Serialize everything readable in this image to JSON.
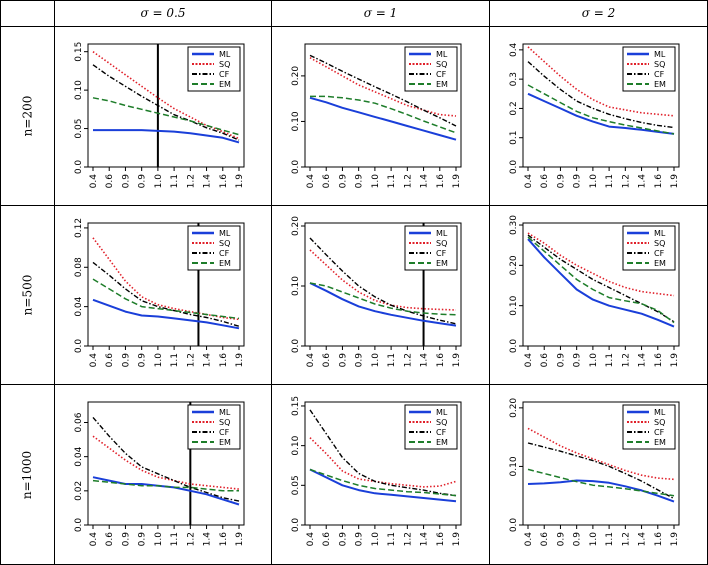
{
  "table": {
    "col_headers": [
      "σ = 0.5",
      "σ = 1",
      "σ = 2"
    ],
    "row_headers": [
      "n=200",
      "n=500",
      "n=1000"
    ]
  },
  "series_colors": {
    "ML": "#1a3fd9",
    "SQ": "#e0202a",
    "CF": "#000000",
    "EM": "#1e7d2a"
  },
  "chart_data": [
    {
      "type": "line",
      "row": "n=200",
      "col": "σ = 0.5",
      "x": [
        0.4,
        0.6,
        0.9,
        0.9,
        1.0,
        1.1,
        1.2,
        1.4,
        1.6,
        1.9
      ],
      "x_ticks": [
        "0.4",
        "0.6",
        "0.9",
        "0.9",
        "1.0",
        "1.1",
        "1.2",
        "1.4",
        "1.6",
        "1.9"
      ],
      "ylim": [
        0,
        0.16
      ],
      "y_ticks": [
        "0.0",
        "0.05",
        "0.10",
        "0.15"
      ],
      "y_tick_values": [
        0,
        0.05,
        0.1,
        0.15
      ],
      "vline_x": 1.0,
      "legend": [
        "ML",
        "SQ",
        "CF",
        "EM"
      ],
      "series": [
        {
          "name": "ML",
          "values": [
            0.048,
            0.048,
            0.048,
            0.048,
            0.047,
            0.046,
            0.044,
            0.041,
            0.038,
            0.032
          ]
        },
        {
          "name": "SQ",
          "values": [
            0.15,
            0.135,
            0.12,
            0.105,
            0.09,
            0.076,
            0.065,
            0.054,
            0.046,
            0.037
          ]
        },
        {
          "name": "CF",
          "values": [
            0.133,
            0.118,
            0.105,
            0.092,
            0.08,
            0.068,
            0.06,
            0.051,
            0.044,
            0.035
          ]
        },
        {
          "name": "EM",
          "values": [
            0.09,
            0.086,
            0.08,
            0.075,
            0.07,
            0.065,
            0.06,
            0.054,
            0.048,
            0.042
          ]
        }
      ]
    },
    {
      "type": "line",
      "row": "n=200",
      "col": "σ = 1",
      "x": [
        0.4,
        0.6,
        0.9,
        0.9,
        1.0,
        1.1,
        1.2,
        1.4,
        1.6,
        1.9
      ],
      "x_ticks": [
        "0.4",
        "0.6",
        "0.9",
        "0.9",
        "1.0",
        "1.1",
        "1.2",
        "1.4",
        "1.6",
        "1.9"
      ],
      "ylim": [
        0,
        0.27
      ],
      "y_ticks": [
        "0.0",
        "0.10",
        "0.20"
      ],
      "y_tick_values": [
        0,
        0.1,
        0.2
      ],
      "vline_x": null,
      "legend": [
        "ML",
        "SQ",
        "CF",
        "EM"
      ],
      "series": [
        {
          "name": "ML",
          "values": [
            0.152,
            0.142,
            0.13,
            0.12,
            0.11,
            0.1,
            0.09,
            0.08,
            0.07,
            0.06
          ]
        },
        {
          "name": "SQ",
          "values": [
            0.24,
            0.22,
            0.2,
            0.18,
            0.165,
            0.15,
            0.135,
            0.125,
            0.115,
            0.112
          ]
        },
        {
          "name": "CF",
          "values": [
            0.245,
            0.228,
            0.21,
            0.193,
            0.176,
            0.16,
            0.143,
            0.125,
            0.108,
            0.09
          ]
        },
        {
          "name": "EM",
          "values": [
            0.155,
            0.155,
            0.152,
            0.147,
            0.14,
            0.128,
            0.115,
            0.101,
            0.088,
            0.075
          ]
        }
      ]
    },
    {
      "type": "line",
      "row": "n=200",
      "col": "σ = 2",
      "x": [
        0.4,
        0.6,
        0.9,
        0.9,
        1.0,
        1.1,
        1.2,
        1.4,
        1.6,
        1.9
      ],
      "x_ticks": [
        "0.4",
        "0.6",
        "0.9",
        "0.9",
        "1.0",
        "1.1",
        "1.2",
        "1.4",
        "1.6",
        "1.9"
      ],
      "ylim": [
        0,
        0.42
      ],
      "y_ticks": [
        "0.0",
        "0.1",
        "0.2",
        "0.3",
        "0.4"
      ],
      "y_tick_values": [
        0,
        0.1,
        0.2,
        0.3,
        0.4
      ],
      "vline_x": null,
      "legend": [
        "ML",
        "SQ",
        "CF",
        "EM"
      ],
      "series": [
        {
          "name": "ML",
          "values": [
            0.25,
            0.225,
            0.2,
            0.175,
            0.155,
            0.138,
            0.133,
            0.127,
            0.12,
            0.113
          ]
        },
        {
          "name": "SQ",
          "values": [
            0.41,
            0.36,
            0.31,
            0.265,
            0.23,
            0.205,
            0.195,
            0.185,
            0.18,
            0.175
          ]
        },
        {
          "name": "CF",
          "values": [
            0.36,
            0.31,
            0.265,
            0.225,
            0.2,
            0.18,
            0.165,
            0.152,
            0.142,
            0.135
          ]
        },
        {
          "name": "EM",
          "values": [
            0.28,
            0.25,
            0.22,
            0.19,
            0.168,
            0.155,
            0.143,
            0.133,
            0.123,
            0.113
          ]
        }
      ]
    },
    {
      "type": "line",
      "row": "n=500",
      "col": "σ = 0.5",
      "x": [
        0.4,
        0.6,
        0.9,
        0.9,
        1.0,
        1.1,
        1.2,
        1.4,
        1.6,
        1.9
      ],
      "x_ticks": [
        "0.4",
        "0.6",
        "0.9",
        "0.9",
        "1.0",
        "1.1",
        "1.2",
        "1.4",
        "1.6",
        "1.9"
      ],
      "ylim": [
        0,
        0.125
      ],
      "y_ticks": [
        "0.0",
        "0.04",
        "0.08",
        "0.12"
      ],
      "y_tick_values": [
        0,
        0.04,
        0.08,
        0.12
      ],
      "vline_x": 1.3,
      "legend": [
        "ML",
        "SQ",
        "CF",
        "EM"
      ],
      "series": [
        {
          "name": "ML",
          "values": [
            0.047,
            0.041,
            0.035,
            0.031,
            0.03,
            0.028,
            0.026,
            0.024,
            0.021,
            0.018
          ]
        },
        {
          "name": "SQ",
          "values": [
            0.11,
            0.088,
            0.066,
            0.05,
            0.042,
            0.038,
            0.035,
            0.032,
            0.029,
            0.027
          ]
        },
        {
          "name": "CF",
          "values": [
            0.085,
            0.072,
            0.058,
            0.046,
            0.04,
            0.036,
            0.032,
            0.029,
            0.025,
            0.02
          ]
        },
        {
          "name": "EM",
          "values": [
            0.068,
            0.058,
            0.048,
            0.04,
            0.038,
            0.036,
            0.034,
            0.032,
            0.03,
            0.028
          ]
        }
      ]
    },
    {
      "type": "line",
      "row": "n=500",
      "col": "σ = 1",
      "x": [
        0.4,
        0.6,
        0.9,
        0.9,
        1.0,
        1.1,
        1.2,
        1.4,
        1.6,
        1.9
      ],
      "x_ticks": [
        "0.4",
        "0.6",
        "0.9",
        "0.9",
        "1.0",
        "1.1",
        "1.2",
        "1.4",
        "1.6",
        "1.9"
      ],
      "ylim": [
        0,
        0.205
      ],
      "y_ticks": [
        "0.0",
        "0.10",
        "0.20"
      ],
      "y_tick_values": [
        0,
        0.1,
        0.2
      ],
      "vline_x": 1.4,
      "legend": [
        "ML",
        "SQ",
        "CF",
        "EM"
      ],
      "series": [
        {
          "name": "ML",
          "values": [
            0.105,
            0.092,
            0.078,
            0.066,
            0.058,
            0.052,
            0.047,
            0.042,
            0.038,
            0.034
          ]
        },
        {
          "name": "SQ",
          "values": [
            0.16,
            0.135,
            0.11,
            0.09,
            0.076,
            0.068,
            0.064,
            0.062,
            0.061,
            0.06
          ]
        },
        {
          "name": "CF",
          "values": [
            0.18,
            0.152,
            0.125,
            0.1,
            0.082,
            0.068,
            0.058,
            0.05,
            0.043,
            0.037
          ]
        },
        {
          "name": "EM",
          "values": [
            0.105,
            0.1,
            0.09,
            0.08,
            0.07,
            0.063,
            0.058,
            0.055,
            0.053,
            0.052
          ]
        }
      ]
    },
    {
      "type": "line",
      "row": "n=500",
      "col": "σ = 2",
      "x": [
        0.4,
        0.6,
        0.9,
        0.9,
        1.0,
        1.1,
        1.2,
        1.4,
        1.6,
        1.9
      ],
      "x_ticks": [
        "0.4",
        "0.6",
        "0.9",
        "0.9",
        "1.0",
        "1.1",
        "1.2",
        "1.4",
        "1.6",
        "1.9"
      ],
      "ylim": [
        0,
        0.305
      ],
      "y_ticks": [
        "0.0",
        "0.10",
        "0.20",
        "0.30"
      ],
      "y_tick_values": [
        0,
        0.1,
        0.2,
        0.3
      ],
      "vline_x": null,
      "legend": [
        "ML",
        "SQ",
        "CF",
        "EM"
      ],
      "series": [
        {
          "name": "ML",
          "values": [
            0.265,
            0.22,
            0.18,
            0.14,
            0.115,
            0.1,
            0.09,
            0.08,
            0.065,
            0.048
          ]
        },
        {
          "name": "SQ",
          "values": [
            0.28,
            0.255,
            0.225,
            0.2,
            0.18,
            0.16,
            0.145,
            0.135,
            0.13,
            0.125
          ]
        },
        {
          "name": "CF",
          "values": [
            0.275,
            0.245,
            0.215,
            0.19,
            0.165,
            0.145,
            0.125,
            0.105,
            0.085,
            0.06
          ]
        },
        {
          "name": "EM",
          "values": [
            0.27,
            0.235,
            0.2,
            0.165,
            0.14,
            0.12,
            0.112,
            0.105,
            0.088,
            0.058
          ]
        }
      ]
    },
    {
      "type": "line",
      "row": "n=1000",
      "col": "σ = 0.5",
      "x": [
        0.4,
        0.6,
        0.9,
        0.9,
        1.0,
        1.1,
        1.2,
        1.4,
        1.6,
        1.9
      ],
      "x_ticks": [
        "0.4",
        "0.6",
        "0.9",
        "0.9",
        "1.0",
        "1.1",
        "1.2",
        "1.4",
        "1.6",
        "1.9"
      ],
      "ylim": [
        0,
        0.072
      ],
      "y_ticks": [
        "0.0",
        "0.02",
        "0.04",
        "0.06"
      ],
      "y_tick_values": [
        0,
        0.02,
        0.04,
        0.06
      ],
      "vline_x": 1.2,
      "legend": [
        "ML",
        "SQ",
        "CF",
        "EM"
      ],
      "series": [
        {
          "name": "ML",
          "values": [
            0.028,
            0.026,
            0.024,
            0.024,
            0.023,
            0.022,
            0.02,
            0.018,
            0.015,
            0.012
          ]
        },
        {
          "name": "SQ",
          "values": [
            0.052,
            0.045,
            0.038,
            0.032,
            0.028,
            0.026,
            0.024,
            0.023,
            0.022,
            0.021
          ]
        },
        {
          "name": "CF",
          "values": [
            0.063,
            0.052,
            0.042,
            0.034,
            0.03,
            0.026,
            0.022,
            0.019,
            0.016,
            0.014
          ]
        },
        {
          "name": "EM",
          "values": [
            0.026,
            0.025,
            0.024,
            0.023,
            0.023,
            0.022,
            0.022,
            0.021,
            0.02,
            0.02
          ]
        }
      ]
    },
    {
      "type": "line",
      "row": "n=1000",
      "col": "σ = 1",
      "x": [
        0.4,
        0.6,
        0.9,
        0.9,
        1.0,
        1.1,
        1.2,
        1.4,
        1.6,
        1.9
      ],
      "x_ticks": [
        "0.4",
        "0.6",
        "0.9",
        "0.9",
        "1.0",
        "1.1",
        "1.2",
        "1.4",
        "1.6",
        "1.9"
      ],
      "ylim": [
        0,
        0.155
      ],
      "y_ticks": [
        "0.0",
        "0.05",
        "0.10",
        "0.15"
      ],
      "y_tick_values": [
        0,
        0.05,
        0.1,
        0.15
      ],
      "vline_x": null,
      "legend": [
        "ML",
        "SQ",
        "CF",
        "EM"
      ],
      "series": [
        {
          "name": "ML",
          "values": [
            0.07,
            0.06,
            0.05,
            0.044,
            0.04,
            0.038,
            0.036,
            0.034,
            0.032,
            0.03
          ]
        },
        {
          "name": "SQ",
          "values": [
            0.11,
            0.09,
            0.068,
            0.058,
            0.055,
            0.052,
            0.05,
            0.048,
            0.049,
            0.055
          ]
        },
        {
          "name": "CF",
          "values": [
            0.145,
            0.115,
            0.085,
            0.065,
            0.055,
            0.05,
            0.047,
            0.044,
            0.04,
            0.037
          ]
        },
        {
          "name": "EM",
          "values": [
            0.07,
            0.063,
            0.056,
            0.05,
            0.046,
            0.044,
            0.042,
            0.041,
            0.039,
            0.037
          ]
        }
      ]
    },
    {
      "type": "line",
      "row": "n=1000",
      "col": "σ = 2",
      "x": [
        0.4,
        0.6,
        0.9,
        0.9,
        1.0,
        1.1,
        1.2,
        1.4,
        1.6,
        1.9
      ],
      "x_ticks": [
        "0.4",
        "0.6",
        "0.9",
        "0.9",
        "1.0",
        "1.1",
        "1.2",
        "1.4",
        "1.6",
        "1.9"
      ],
      "ylim": [
        0,
        0.21
      ],
      "y_ticks": [
        "0.0",
        "0.10",
        "0.20"
      ],
      "y_tick_values": [
        0,
        0.1,
        0.2
      ],
      "vline_x": null,
      "legend": [
        "ML",
        "SQ",
        "CF",
        "EM"
      ],
      "series": [
        {
          "name": "ML",
          "values": [
            0.07,
            0.071,
            0.073,
            0.076,
            0.075,
            0.072,
            0.066,
            0.059,
            0.05,
            0.04
          ]
        },
        {
          "name": "SQ",
          "values": [
            0.165,
            0.15,
            0.135,
            0.123,
            0.113,
            0.103,
            0.093,
            0.085,
            0.08,
            0.078
          ]
        },
        {
          "name": "CF",
          "values": [
            0.14,
            0.133,
            0.126,
            0.118,
            0.11,
            0.1,
            0.088,
            0.075,
            0.06,
            0.045
          ]
        },
        {
          "name": "EM",
          "values": [
            0.095,
            0.088,
            0.081,
            0.074,
            0.068,
            0.065,
            0.062,
            0.058,
            0.054,
            0.05
          ]
        }
      ]
    }
  ]
}
